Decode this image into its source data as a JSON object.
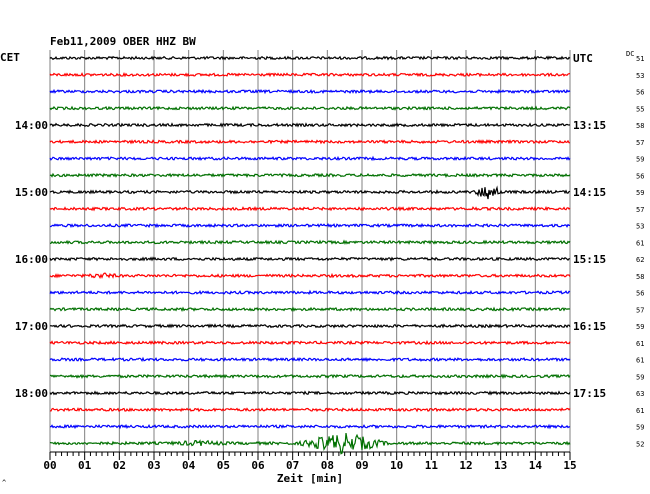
{
  "chart_data": {
    "type": "line",
    "title": "Feb11,2009   OBER HHZ BW",
    "xlabel": "Zeit [min]",
    "left_axis_label": "CET",
    "right_axis_label": "UTC",
    "dc_label": "DC",
    "xlim": [
      0,
      15
    ],
    "x_ticks": [
      "00",
      "01",
      "02",
      "03",
      "04",
      "05",
      "06",
      "07",
      "08",
      "09",
      "10",
      "11",
      "12",
      "13",
      "14",
      "15"
    ],
    "trace_colors": [
      "#000000",
      "#ff0000",
      "#0000ff",
      "#007000"
    ],
    "left_hour_labels": [
      {
        "trace": 4,
        "text": "14:00"
      },
      {
        "trace": 8,
        "text": "15:00"
      },
      {
        "trace": 12,
        "text": "16:00"
      },
      {
        "trace": 16,
        "text": "17:00"
      },
      {
        "trace": 20,
        "text": "18:00"
      }
    ],
    "right_hour_labels": [
      {
        "trace": 0,
        "text": "UTC"
      },
      {
        "trace": 4,
        "text": "13:15"
      },
      {
        "trace": 8,
        "text": "14:15"
      },
      {
        "trace": 12,
        "text": "15:15"
      },
      {
        "trace": 16,
        "text": "16:15"
      },
      {
        "trace": 20,
        "text": "17:15"
      }
    ],
    "dc_values": [
      "51",
      "53",
      "56",
      "55",
      "58",
      "57",
      "59",
      "56",
      "59",
      "57",
      "53",
      "61",
      "62",
      "58",
      "56",
      "57",
      "59",
      "61",
      "61",
      "59",
      "63",
      "61",
      "59",
      "52"
    ],
    "events": [
      {
        "trace": 8,
        "center_min": 12.65,
        "duration_min": 0.5,
        "amp": 9
      },
      {
        "trace": 9,
        "center_min": 12.2,
        "duration_min": 0.4,
        "amp": 2
      },
      {
        "trace": 9,
        "center_min": 10.8,
        "duration_min": 0.3,
        "amp": 1.5
      },
      {
        "trace": 13,
        "center_min": 1.5,
        "duration_min": 0.9,
        "amp": 3
      },
      {
        "trace": 23,
        "center_min": 4.3,
        "duration_min": 1.6,
        "amp": 3
      },
      {
        "trace": 23,
        "center_min": 8.45,
        "duration_min": 1.5,
        "amp": 11
      }
    ],
    "grid": true
  }
}
